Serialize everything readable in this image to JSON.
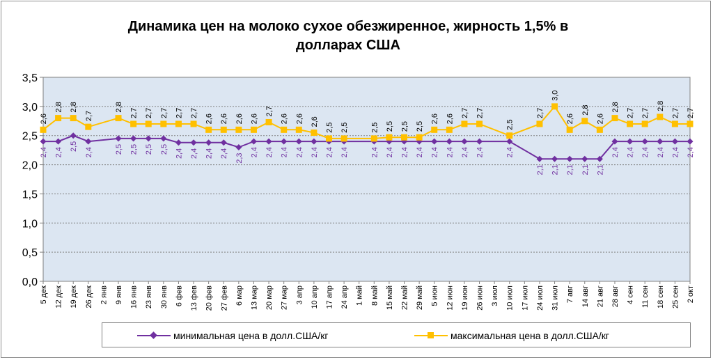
{
  "title_line1": "Динамика цен на молоко сухое обезжиренное, жирность 1,5%  в",
  "title_line2": "долларах США",
  "colors": {
    "min": "#7030a0",
    "max": "#ffc000",
    "plot_bg": "#dce6f2",
    "label_min": "#7030a0",
    "label_max": "#000000"
  },
  "legend": {
    "min": "минимальная цена в долл.США/кг",
    "max": "максимальная цена в долл.США/кг"
  },
  "chart_data": {
    "type": "line",
    "title": "Динамика цен на молоко сухое обезжиренное, жирность 1,5%  в долларах США",
    "xlabel": "",
    "ylabel": "",
    "ylim": [
      0,
      3.5
    ],
    "yticks": [
      "0,0",
      "0,5",
      "1,0",
      "1,5",
      "2,0",
      "2,5",
      "3,0",
      "3,5"
    ],
    "grid": true,
    "legend_position": "bottom",
    "categories": [
      "5 дек",
      "12 дек",
      "19 дек",
      "26 дек",
      "2 янв",
      "9 янв",
      "16 янв",
      "23 янв",
      "30 янв",
      "6 фев",
      "13 фев",
      "20 фев",
      "27 фев",
      "6 мар",
      "13 мар",
      "20 мар",
      "27 мар",
      "3 апр",
      "10 апр",
      "17 апр",
      "24 апр",
      "1 май",
      "8 май",
      "15 май",
      "22 май",
      "29 май",
      "5 июн",
      "12 июн",
      "19 июн",
      "26 июн",
      "3 июл",
      "10 июл",
      "17 июл",
      "24 июл",
      "31 июл",
      "7 авг",
      "14 авг",
      "21 авг",
      "28 авг",
      "4 сен",
      "11 сен",
      "18 сен",
      "25 сен",
      "2 окт"
    ],
    "series": [
      {
        "name": "минимальная цена в долл.США/кг",
        "values": [
          2.4,
          2.4,
          2.5,
          2.4,
          null,
          2.45,
          2.45,
          2.45,
          2.45,
          2.38,
          2.38,
          2.38,
          2.38,
          2.3,
          2.4,
          2.4,
          2.4,
          2.4,
          2.4,
          2.4,
          2.4,
          null,
          2.4,
          2.4,
          2.4,
          2.4,
          2.4,
          2.4,
          2.4,
          2.4,
          null,
          2.4,
          null,
          2.1,
          2.1,
          2.1,
          2.1,
          2.1,
          2.4,
          2.4,
          2.4,
          2.4,
          2.4,
          2.4
        ],
        "labels": [
          "2,4",
          "2,4",
          "2,5",
          "2,4",
          "",
          "2,5",
          "2,5",
          "2,5",
          "2,5",
          "2,4",
          "2,4",
          "2,4",
          "2,4",
          "2,3",
          "2,4",
          "2,4",
          "2,4",
          "2,4",
          "2,4",
          "2,4",
          "2,4",
          "",
          "2,4",
          "2,4",
          "2,4",
          "2,4",
          "2,4",
          "2,4",
          "2,4",
          "2,4",
          "",
          "2,4",
          "",
          "2,1",
          "2,1",
          "2,1",
          "2,1",
          "2,1",
          "2,4",
          "2,4",
          "2,4",
          "2,4",
          "2,4",
          "2,4"
        ]
      },
      {
        "name": "максимальная цена в долл.США/кг",
        "values": [
          2.6,
          2.8,
          2.8,
          2.65,
          null,
          2.8,
          2.7,
          2.7,
          2.7,
          2.7,
          2.7,
          2.6,
          2.6,
          2.6,
          2.6,
          2.73,
          2.6,
          2.6,
          2.55,
          2.45,
          2.45,
          null,
          2.45,
          2.47,
          2.47,
          2.47,
          2.6,
          2.6,
          2.7,
          2.7,
          null,
          2.5,
          null,
          2.7,
          3.0,
          2.6,
          2.75,
          2.6,
          2.8,
          2.7,
          2.7,
          2.82,
          2.7,
          2.7
        ],
        "labels": [
          "2,6",
          "2,8",
          "2,8",
          "2,7",
          "",
          "2,8",
          "2,7",
          "2,7",
          "2,7",
          "2,7",
          "2,7",
          "2,6",
          "2,6",
          "2,6",
          "2,6",
          "2,7",
          "2,6",
          "2,6",
          "2,6",
          "2,5",
          "2,5",
          "",
          "2,5",
          "2,5",
          "2,5",
          "2,5",
          "2,6",
          "2,6",
          "2,7",
          "2,7",
          "",
          "2,5",
          "",
          "2,7",
          "3,0",
          "2,6",
          "2,8",
          "2,6",
          "2,8",
          "2,7",
          "2,7",
          "2,8",
          "2,7",
          "2,7"
        ]
      }
    ]
  }
}
